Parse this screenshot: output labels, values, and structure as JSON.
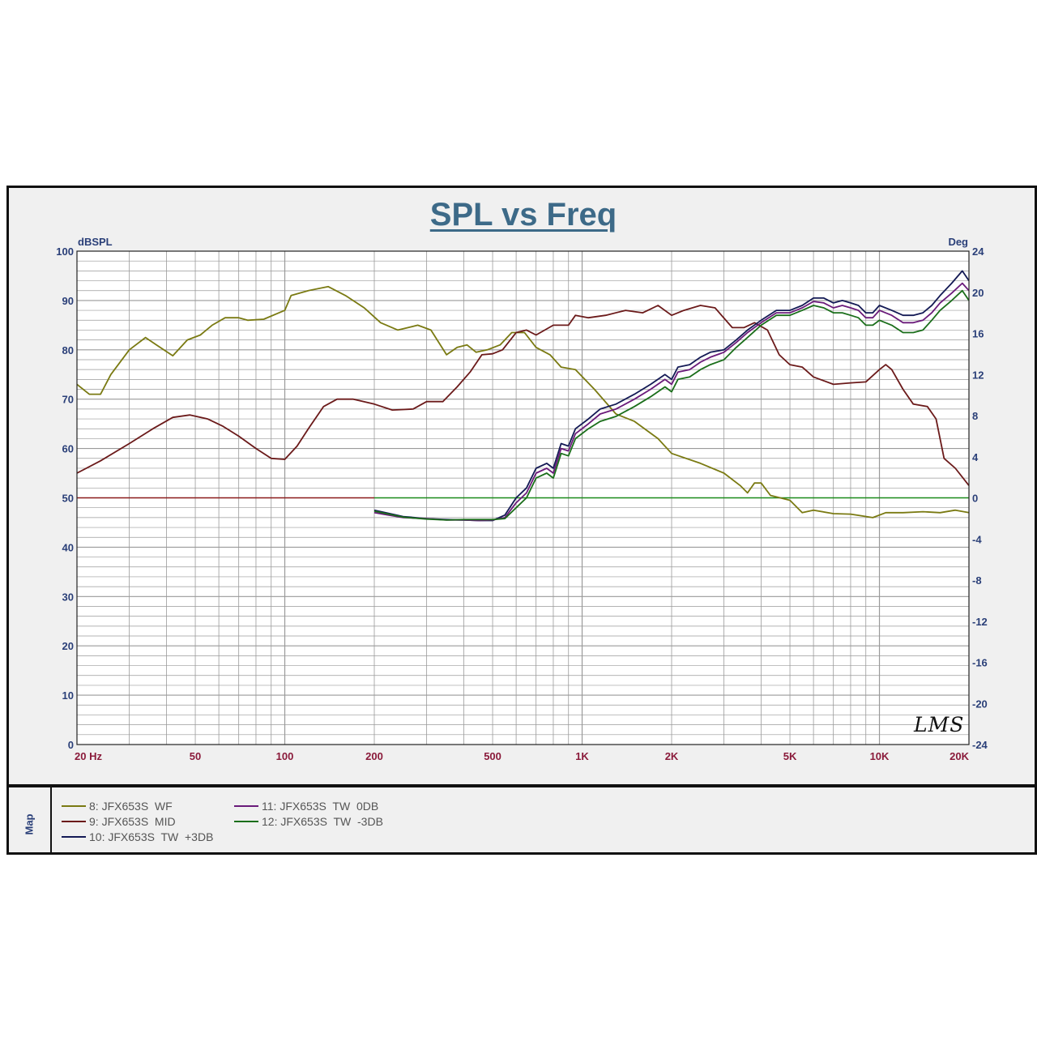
{
  "chart_data": {
    "type": "line",
    "title": "SPL vs Freq",
    "ylabel_left": "dBSPL",
    "ylabel_right": "Deg",
    "xscale": "log",
    "xlim": [
      20,
      20000
    ],
    "ylim_left": [
      0,
      100
    ],
    "ylim_right": [
      -24,
      24
    ],
    "grid": true,
    "x_ticks": [
      {
        "value": 20,
        "label": "20  Hz"
      },
      {
        "value": 50,
        "label": "50"
      },
      {
        "value": 100,
        "label": "100"
      },
      {
        "value": 200,
        "label": "200"
      },
      {
        "value": 500,
        "label": "500"
      },
      {
        "value": 1000,
        "label": "1K"
      },
      {
        "value": 2000,
        "label": "2K"
      },
      {
        "value": 5000,
        "label": "5K"
      },
      {
        "value": 10000,
        "label": "10K"
      },
      {
        "value": 20000,
        "label": "20K"
      }
    ],
    "y_ticks_left": [
      "0",
      "10",
      "20",
      "30",
      "40",
      "50",
      "60",
      "70",
      "80",
      "90",
      "100"
    ],
    "y_ticks_right": [
      "-24",
      "-20",
      "-16",
      "-12",
      "-8",
      "-4",
      "0",
      "4",
      "8",
      "12",
      "16",
      "20",
      "24"
    ],
    "series": [
      {
        "name": "8: JFX653S  WF",
        "color": "#7a7a12",
        "points": [
          [
            20,
            73
          ],
          [
            22,
            71
          ],
          [
            24,
            71
          ],
          [
            26,
            75
          ],
          [
            30,
            80
          ],
          [
            34,
            82.5
          ],
          [
            37,
            81
          ],
          [
            42,
            78.8
          ],
          [
            47,
            82
          ],
          [
            52,
            83
          ],
          [
            57,
            85
          ],
          [
            63,
            86.5
          ],
          [
            70,
            86.5
          ],
          [
            75,
            86
          ],
          [
            85,
            86.2
          ],
          [
            100,
            88
          ],
          [
            105,
            91
          ],
          [
            120,
            92
          ],
          [
            140,
            92.8
          ],
          [
            160,
            91
          ],
          [
            185,
            88.5
          ],
          [
            210,
            85.5
          ],
          [
            240,
            84
          ],
          [
            280,
            85
          ],
          [
            310,
            84
          ],
          [
            350,
            79
          ],
          [
            380,
            80.5
          ],
          [
            410,
            81
          ],
          [
            440,
            79.5
          ],
          [
            480,
            80
          ],
          [
            530,
            81
          ],
          [
            580,
            83.5
          ],
          [
            640,
            83.5
          ],
          [
            700,
            80.5
          ],
          [
            780,
            79
          ],
          [
            850,
            76.5
          ],
          [
            950,
            76
          ],
          [
            1100,
            72
          ],
          [
            1300,
            67
          ],
          [
            1500,
            65.5
          ],
          [
            1800,
            62
          ],
          [
            2000,
            59
          ],
          [
            2500,
            57
          ],
          [
            3000,
            55
          ],
          [
            3400,
            52.5
          ],
          [
            3600,
            51
          ],
          [
            3800,
            53
          ],
          [
            4000,
            53
          ],
          [
            4300,
            50.5
          ],
          [
            5000,
            49.5
          ],
          [
            5500,
            47
          ],
          [
            6000,
            47.5
          ],
          [
            7000,
            46.8
          ],
          [
            8000,
            46.7
          ],
          [
            9500,
            46
          ],
          [
            10500,
            47
          ],
          [
            12000,
            47
          ],
          [
            14000,
            47.2
          ],
          [
            16000,
            47
          ],
          [
            18000,
            47.5
          ],
          [
            20000,
            47
          ]
        ]
      },
      {
        "name": "9: JFX653S  MID",
        "color": "#6b1a1a",
        "points": [
          [
            20,
            55
          ],
          [
            24,
            57.5
          ],
          [
            30,
            61
          ],
          [
            36,
            64
          ],
          [
            42,
            66.3
          ],
          [
            48,
            66.8
          ],
          [
            55,
            66
          ],
          [
            62,
            64.5
          ],
          [
            70,
            62.5
          ],
          [
            80,
            60
          ],
          [
            90,
            58
          ],
          [
            100,
            57.8
          ],
          [
            110,
            60.5
          ],
          [
            120,
            64
          ],
          [
            135,
            68.5
          ],
          [
            150,
            70
          ],
          [
            170,
            70
          ],
          [
            200,
            69
          ],
          [
            230,
            67.8
          ],
          [
            270,
            68
          ],
          [
            300,
            69.5
          ],
          [
            340,
            69.5
          ],
          [
            380,
            72.5
          ],
          [
            420,
            75.5
          ],
          [
            460,
            79
          ],
          [
            500,
            79.2
          ],
          [
            540,
            80
          ],
          [
            600,
            83.5
          ],
          [
            650,
            84
          ],
          [
            700,
            83
          ],
          [
            800,
            85
          ],
          [
            900,
            85
          ],
          [
            950,
            87
          ],
          [
            1050,
            86.5
          ],
          [
            1200,
            87
          ],
          [
            1400,
            88
          ],
          [
            1600,
            87.5
          ],
          [
            1800,
            89
          ],
          [
            2000,
            87
          ],
          [
            2200,
            88
          ],
          [
            2500,
            89
          ],
          [
            2800,
            88.5
          ],
          [
            3200,
            84.5
          ],
          [
            3500,
            84.5
          ],
          [
            3800,
            85.5
          ],
          [
            4200,
            84
          ],
          [
            4600,
            79
          ],
          [
            5000,
            77
          ],
          [
            5500,
            76.5
          ],
          [
            6000,
            74.5
          ],
          [
            7000,
            73
          ],
          [
            8000,
            73.3
          ],
          [
            9000,
            73.5
          ],
          [
            10000,
            76
          ],
          [
            10500,
            77
          ],
          [
            11000,
            76
          ],
          [
            12000,
            72
          ],
          [
            13000,
            69
          ],
          [
            14500,
            68.5
          ],
          [
            15500,
            66
          ],
          [
            16500,
            58
          ],
          [
            18000,
            56
          ],
          [
            20000,
            52.5
          ]
        ]
      },
      {
        "name": "10: JFX653S  TW  +3DB",
        "color": "#141a55",
        "points": [
          [
            200,
            47.5
          ],
          [
            250,
            46.2
          ],
          [
            300,
            45.8
          ],
          [
            350,
            45.6
          ],
          [
            400,
            45.5
          ],
          [
            450,
            45.4
          ],
          [
            500,
            45.4
          ],
          [
            550,
            46.5
          ],
          [
            600,
            50
          ],
          [
            650,
            52
          ],
          [
            700,
            56
          ],
          [
            760,
            57
          ],
          [
            800,
            56
          ],
          [
            850,
            61
          ],
          [
            900,
            60.5
          ],
          [
            950,
            64
          ],
          [
            1050,
            66
          ],
          [
            1150,
            68
          ],
          [
            1300,
            69
          ],
          [
            1500,
            71
          ],
          [
            1700,
            73
          ],
          [
            1900,
            75
          ],
          [
            2000,
            74
          ],
          [
            2100,
            76.5
          ],
          [
            2300,
            77
          ],
          [
            2500,
            78.5
          ],
          [
            2700,
            79.5
          ],
          [
            3000,
            80
          ],
          [
            3300,
            82
          ],
          [
            3600,
            84
          ],
          [
            4000,
            86
          ],
          [
            4500,
            88
          ],
          [
            5000,
            88
          ],
          [
            5500,
            89
          ],
          [
            6000,
            90.5
          ],
          [
            6500,
            90.5
          ],
          [
            7000,
            89.5
          ],
          [
            7500,
            90
          ],
          [
            8000,
            89.5
          ],
          [
            8500,
            89
          ],
          [
            9000,
            87.5
          ],
          [
            9500,
            87.5
          ],
          [
            10000,
            89
          ],
          [
            11000,
            88
          ],
          [
            12000,
            87
          ],
          [
            13000,
            87
          ],
          [
            14000,
            87.5
          ],
          [
            15000,
            89
          ],
          [
            16000,
            91
          ],
          [
            17500,
            93.5
          ],
          [
            19000,
            96
          ],
          [
            20000,
            94
          ]
        ]
      },
      {
        "name": "11: JFX653S  TW  0DB",
        "color": "#6a1a7a",
        "points": [
          [
            200,
            47
          ],
          [
            250,
            46
          ],
          [
            300,
            45.8
          ],
          [
            350,
            45.5
          ],
          [
            400,
            45.5
          ],
          [
            450,
            45.4
          ],
          [
            500,
            45.5
          ],
          [
            550,
            46
          ],
          [
            600,
            49
          ],
          [
            650,
            51
          ],
          [
            700,
            55
          ],
          [
            760,
            56
          ],
          [
            800,
            55
          ],
          [
            850,
            60
          ],
          [
            900,
            59.5
          ],
          [
            950,
            63
          ],
          [
            1050,
            65
          ],
          [
            1150,
            67
          ],
          [
            1300,
            68
          ],
          [
            1500,
            70
          ],
          [
            1700,
            72
          ],
          [
            1900,
            74
          ],
          [
            2000,
            73
          ],
          [
            2100,
            75.5
          ],
          [
            2300,
            76
          ],
          [
            2500,
            77.5
          ],
          [
            2700,
            78.5
          ],
          [
            3000,
            79.5
          ],
          [
            3300,
            81.5
          ],
          [
            3600,
            83.5
          ],
          [
            4000,
            85.5
          ],
          [
            4500,
            87.5
          ],
          [
            5000,
            87.5
          ],
          [
            5500,
            88.5
          ],
          [
            6000,
            89.8
          ],
          [
            6500,
            89.5
          ],
          [
            7000,
            88.5
          ],
          [
            7500,
            89
          ],
          [
            8000,
            88.5
          ],
          [
            8500,
            88
          ],
          [
            9000,
            86.5
          ],
          [
            9500,
            86.5
          ],
          [
            10000,
            88
          ],
          [
            11000,
            87
          ],
          [
            12000,
            85.5
          ],
          [
            13000,
            85.5
          ],
          [
            14000,
            86
          ],
          [
            15000,
            87.5
          ],
          [
            16000,
            89.5
          ],
          [
            17500,
            91.5
          ],
          [
            19000,
            93.5
          ],
          [
            20000,
            92
          ]
        ]
      },
      {
        "name": "12: JFX653S  TW  -3DB",
        "color": "#1a6e1a",
        "points": [
          [
            200,
            47.3
          ],
          [
            250,
            46.1
          ],
          [
            300,
            45.7
          ],
          [
            350,
            45.5
          ],
          [
            400,
            45.6
          ],
          [
            450,
            45.6
          ],
          [
            500,
            45.6
          ],
          [
            550,
            45.8
          ],
          [
            600,
            48
          ],
          [
            650,
            50
          ],
          [
            700,
            54
          ],
          [
            760,
            55
          ],
          [
            800,
            54
          ],
          [
            850,
            59
          ],
          [
            900,
            58.5
          ],
          [
            950,
            62
          ],
          [
            1050,
            64
          ],
          [
            1150,
            65.5
          ],
          [
            1300,
            66.5
          ],
          [
            1500,
            68.5
          ],
          [
            1700,
            70.5
          ],
          [
            1900,
            72.5
          ],
          [
            2000,
            71.5
          ],
          [
            2100,
            74
          ],
          [
            2300,
            74.5
          ],
          [
            2500,
            76
          ],
          [
            2700,
            77
          ],
          [
            3000,
            78
          ],
          [
            3300,
            80.5
          ],
          [
            3600,
            82.5
          ],
          [
            4000,
            85
          ],
          [
            4500,
            87
          ],
          [
            5000,
            87
          ],
          [
            5500,
            88
          ],
          [
            6000,
            89
          ],
          [
            6500,
            88.5
          ],
          [
            7000,
            87.5
          ],
          [
            7500,
            87.5
          ],
          [
            8000,
            87
          ],
          [
            8500,
            86.5
          ],
          [
            9000,
            85
          ],
          [
            9500,
            85
          ],
          [
            10000,
            86
          ],
          [
            11000,
            85
          ],
          [
            12000,
            83.5
          ],
          [
            13000,
            83.5
          ],
          [
            14000,
            84
          ],
          [
            15000,
            86
          ],
          [
            16000,
            88
          ],
          [
            17500,
            90
          ],
          [
            19000,
            92
          ],
          [
            20000,
            90
          ]
        ]
      }
    ],
    "reference_lines": [
      {
        "color": "#8a1a1a",
        "from": 20,
        "to": 200,
        "value": 50
      },
      {
        "color": "#1a8a1a",
        "from": 200,
        "to": 20000,
        "value": 50
      }
    ]
  },
  "signature": "LMS",
  "legend_title": "Map",
  "colors": {
    "axis_label": "#2a3f78",
    "x_tick": "#8a1a3a",
    "title": "#3d6a88"
  }
}
